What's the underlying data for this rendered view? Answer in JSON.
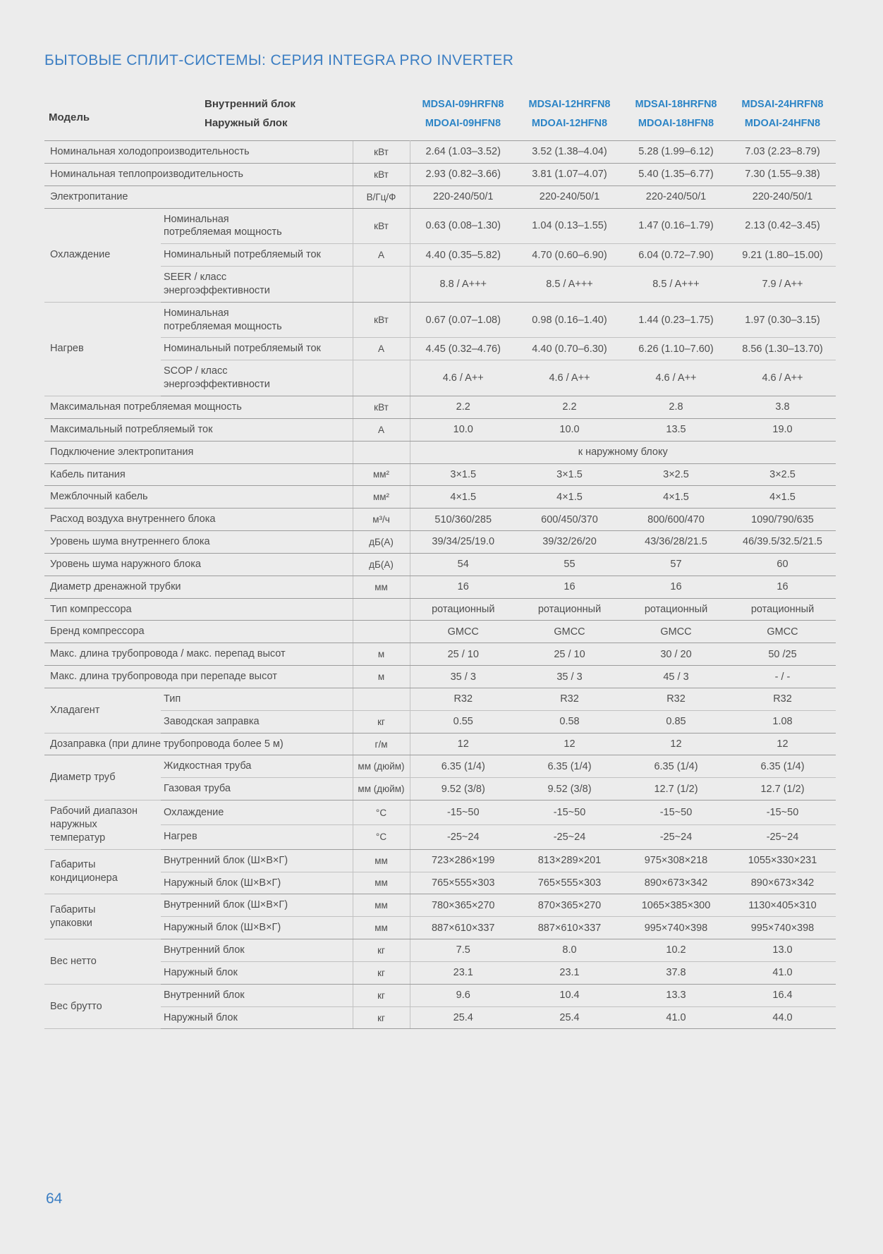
{
  "page": {
    "title": "БЫТОВЫЕ СПЛИТ-СИСТЕМЫ: СЕРИЯ INTEGRA PRO INVERTER",
    "page_number": "64"
  },
  "colors": {
    "accent_blue": "#3b7ec3",
    "model_blue": "#2b84c6",
    "text_gray": "#4e4e4e",
    "background": "#ececec"
  },
  "header": {
    "model_label": "Модель",
    "indoor_label": "Внутренний блок",
    "outdoor_label": "Наружный блок",
    "indoor_models": [
      "MDSAI-09HRFN8",
      "MDSAI-12HRFN8",
      "MDSAI-18HRFN8",
      "MDSAI-24HRFN8"
    ],
    "outdoor_models": [
      "MDOAI-09HFN8",
      "MDOAI-12HFN8",
      "MDOAI-18HFN8",
      "MDOAI-24HFN8"
    ]
  },
  "table": {
    "rows": [
      {
        "label": "Номинальная  холодопроизводительность",
        "unit": "кВт",
        "values": [
          "2.64 (1.03–3.52)",
          "3.52 (1.38–4.04)",
          "5.28 (1.99–6.12)",
          "7.03 (2.23–8.79)"
        ],
        "sep": "major"
      },
      {
        "label": "Номинальная теплопроизводительность",
        "unit": "кВт",
        "values": [
          "2.93 (0.82–3.66)",
          "3.81 (1.07–4.07)",
          "5.40 (1.35–6.77)",
          "7.30 (1.55–9.38)"
        ],
        "sep": "major"
      },
      {
        "label": "Электропитание",
        "unit": "В/Гц/Ф",
        "values": [
          "220-240/50/1",
          "220-240/50/1",
          "220-240/50/1",
          "220-240/50/1"
        ],
        "sep": "major"
      },
      {
        "group": "Охлаждение",
        "group_rows": 3,
        "label": "Номинальная\nпотребляемая мощность",
        "unit": "кВт",
        "values": [
          "0.63 (0.08–1.30)",
          "1.04 (0.13–1.55)",
          "1.47 (0.16–1.79)",
          "2.13 (0.42–3.45)"
        ],
        "sep": "minor"
      },
      {
        "in_group": true,
        "label": "Номинальный потребляемый ток",
        "unit": "А",
        "values": [
          "4.40 (0.35–5.82)",
          "4.70 (0.60–6.90)",
          "6.04 (0.72–7.90)",
          "9.21 (1.80–15.00)"
        ],
        "sep": "minor"
      },
      {
        "in_group": true,
        "label": "SEER / класс\nэнергоэффективности",
        "unit": "",
        "values": [
          "8.8 / A+++",
          "8.5 / A+++",
          "8.5 / A+++",
          "7.9 / A++"
        ],
        "sep": "major"
      },
      {
        "group": "Нагрев",
        "group_rows": 3,
        "label": "Номинальная\nпотребляемая мощность",
        "unit": "кВт",
        "values": [
          "0.67 (0.07–1.08)",
          "0.98 (0.16–1.40)",
          "1.44 (0.23–1.75)",
          "1.97 (0.30–3.15)"
        ],
        "sep": "minor"
      },
      {
        "in_group": true,
        "label": "Номинальный потребляемый ток",
        "unit": "А",
        "values": [
          "4.45 (0.32–4.76)",
          "4.40 (0.70–6.30)",
          "6.26 (1.10–7.60)",
          "8.56 (1.30–13.70)"
        ],
        "sep": "minor"
      },
      {
        "in_group": true,
        "label": "SCOP / класс\nэнергоэффективности",
        "unit": "",
        "values": [
          "4.6 / A++",
          "4.6 / A++",
          "4.6 / A++",
          "4.6 / A++"
        ],
        "sep": "major"
      },
      {
        "label": "Максимальная потребляемая мощность",
        "unit": "кВт",
        "values": [
          "2.2",
          "2.2",
          "2.8",
          "3.8"
        ],
        "sep": "major"
      },
      {
        "label": "Максимальный потребляемый ток",
        "unit": "А",
        "values": [
          "10.0",
          "10.0",
          "13.5",
          "19.0"
        ],
        "sep": "major"
      },
      {
        "label": "Подключение электропитания",
        "unit": "",
        "span_value": "к наружному блоку",
        "sep": "major"
      },
      {
        "label": "Кабель питания",
        "unit": "мм²",
        "values": [
          "3×1.5",
          "3×1.5",
          "3×2.5",
          "3×2.5"
        ],
        "sep": "major"
      },
      {
        "label": "Межблочный кабель",
        "unit": "мм²",
        "values": [
          "4×1.5",
          "4×1.5",
          "4×1.5",
          "4×1.5"
        ],
        "sep": "major"
      },
      {
        "label": "Расход воздуха внутреннего блока",
        "unit": "м³/ч",
        "values": [
          "510/360/285",
          "600/450/370",
          "800/600/470",
          "1090/790/635"
        ],
        "sep": "major"
      },
      {
        "label": "Уровень шума внутреннего блока",
        "unit": "дБ(А)",
        "values": [
          "39/34/25/19.0",
          "39/32/26/20",
          "43/36/28/21.5",
          "46/39.5/32.5/21.5"
        ],
        "sep": "major"
      },
      {
        "label": "Уровень шума наружного блока",
        "unit": "дБ(А)",
        "values": [
          "54",
          "55",
          "57",
          "60"
        ],
        "sep": "major"
      },
      {
        "label": "Диаметр дренажной трубки",
        "unit": "мм",
        "values": [
          "16",
          "16",
          "16",
          "16"
        ],
        "sep": "major"
      },
      {
        "label": "Тип компрессора",
        "unit": "",
        "values": [
          "ротационный",
          "ротационный",
          "ротационный",
          "ротационный"
        ],
        "sep": "major"
      },
      {
        "label": "Бренд компрессора",
        "unit": "",
        "values": [
          "GMCC",
          "GMCC",
          "GMCC",
          "GMCC"
        ],
        "sep": "major"
      },
      {
        "label": "Макс. длина трубопровода / макс. перепад высот",
        "unit": "м",
        "values": [
          "25 / 10",
          "25 / 10",
          "30 / 20",
          "50 /25"
        ],
        "sep": "major"
      },
      {
        "label": "Макс. длина трубопровода при перепаде высот",
        "unit": "м",
        "values": [
          "35 / 3",
          "35 / 3",
          "45 / 3",
          "- / -"
        ],
        "sep": "major"
      },
      {
        "group": "Хладагент",
        "group_rows": 2,
        "label": "Тип",
        "unit": "",
        "values": [
          "R32",
          "R32",
          "R32",
          "R32"
        ],
        "sep": "minor"
      },
      {
        "in_group": true,
        "label": "Заводская заправка",
        "unit": "кг",
        "values": [
          "0.55",
          "0.58",
          "0.85",
          "1.08"
        ],
        "sep": "major"
      },
      {
        "label": "Дозаправка (при длине трубопровода более 5 м)",
        "unit": "г/м",
        "values": [
          "12",
          "12",
          "12",
          "12"
        ],
        "sep": "major"
      },
      {
        "group": "Диаметр труб",
        "group_rows": 2,
        "label": "Жидкостная труба",
        "unit": "мм (дюйм)",
        "values": [
          "6.35 (1/4)",
          "6.35 (1/4)",
          "6.35 (1/4)",
          "6.35 (1/4)"
        ],
        "sep": "minor"
      },
      {
        "in_group": true,
        "label": "Газовая труба",
        "unit": "мм (дюйм)",
        "values": [
          "9.52 (3/8)",
          "9.52 (3/8)",
          "12.7 (1/2)",
          "12.7 (1/2)"
        ],
        "sep": "major"
      },
      {
        "group": "Рабочий диапазон\nнаружных\nтемператур",
        "group_rows": 2,
        "label": "Охлаждение",
        "unit": "°С",
        "values": [
          "-15~50",
          "-15~50",
          "-15~50",
          "-15~50"
        ],
        "sep": "minor"
      },
      {
        "in_group": true,
        "label": "Нагрев",
        "unit": "°С",
        "values": [
          "-25~24",
          "-25~24",
          "-25~24",
          "-25~24"
        ],
        "sep": "major"
      },
      {
        "group": "Габариты\nкондиционера",
        "group_rows": 2,
        "label": "Внутренний блок (Ш×В×Г)",
        "unit": "мм",
        "values": [
          "723×286×199",
          "813×289×201",
          "975×308×218",
          "1055×330×231"
        ],
        "sep": "minor"
      },
      {
        "in_group": true,
        "label": "Наружный блок (Ш×В×Г)",
        "unit": "мм",
        "values": [
          "765×555×303",
          "765×555×303",
          "890×673×342",
          "890×673×342"
        ],
        "sep": "major"
      },
      {
        "group": "Габариты\nупаковки",
        "group_rows": 2,
        "label": "Внутренний блок (Ш×В×Г)",
        "unit": "мм",
        "values": [
          "780×365×270",
          "870×365×270",
          "1065×385×300",
          "1130×405×310"
        ],
        "sep": "minor"
      },
      {
        "in_group": true,
        "label": "Наружный блок (Ш×В×Г)",
        "unit": "мм",
        "values": [
          "887×610×337",
          "887×610×337",
          "995×740×398",
          "995×740×398"
        ],
        "sep": "major"
      },
      {
        "group": "Вес нетто",
        "group_rows": 2,
        "label": "Внутренний блок",
        "unit": "кг",
        "values": [
          "7.5",
          "8.0",
          "10.2",
          "13.0"
        ],
        "sep": "minor"
      },
      {
        "in_group": true,
        "label": "Наружный блок",
        "unit": "кг",
        "values": [
          "23.1",
          "23.1",
          "37.8",
          "41.0"
        ],
        "sep": "major"
      },
      {
        "group": "Вес брутто",
        "group_rows": 2,
        "label": "Внутренний блок",
        "unit": "кг",
        "values": [
          "9.6",
          "10.4",
          "13.3",
          "16.4"
        ],
        "sep": "minor"
      },
      {
        "in_group": true,
        "label": "Наружный блок",
        "unit": "кг",
        "values": [
          "25.4",
          "25.4",
          "41.0",
          "44.0"
        ],
        "sep": "major"
      }
    ]
  }
}
